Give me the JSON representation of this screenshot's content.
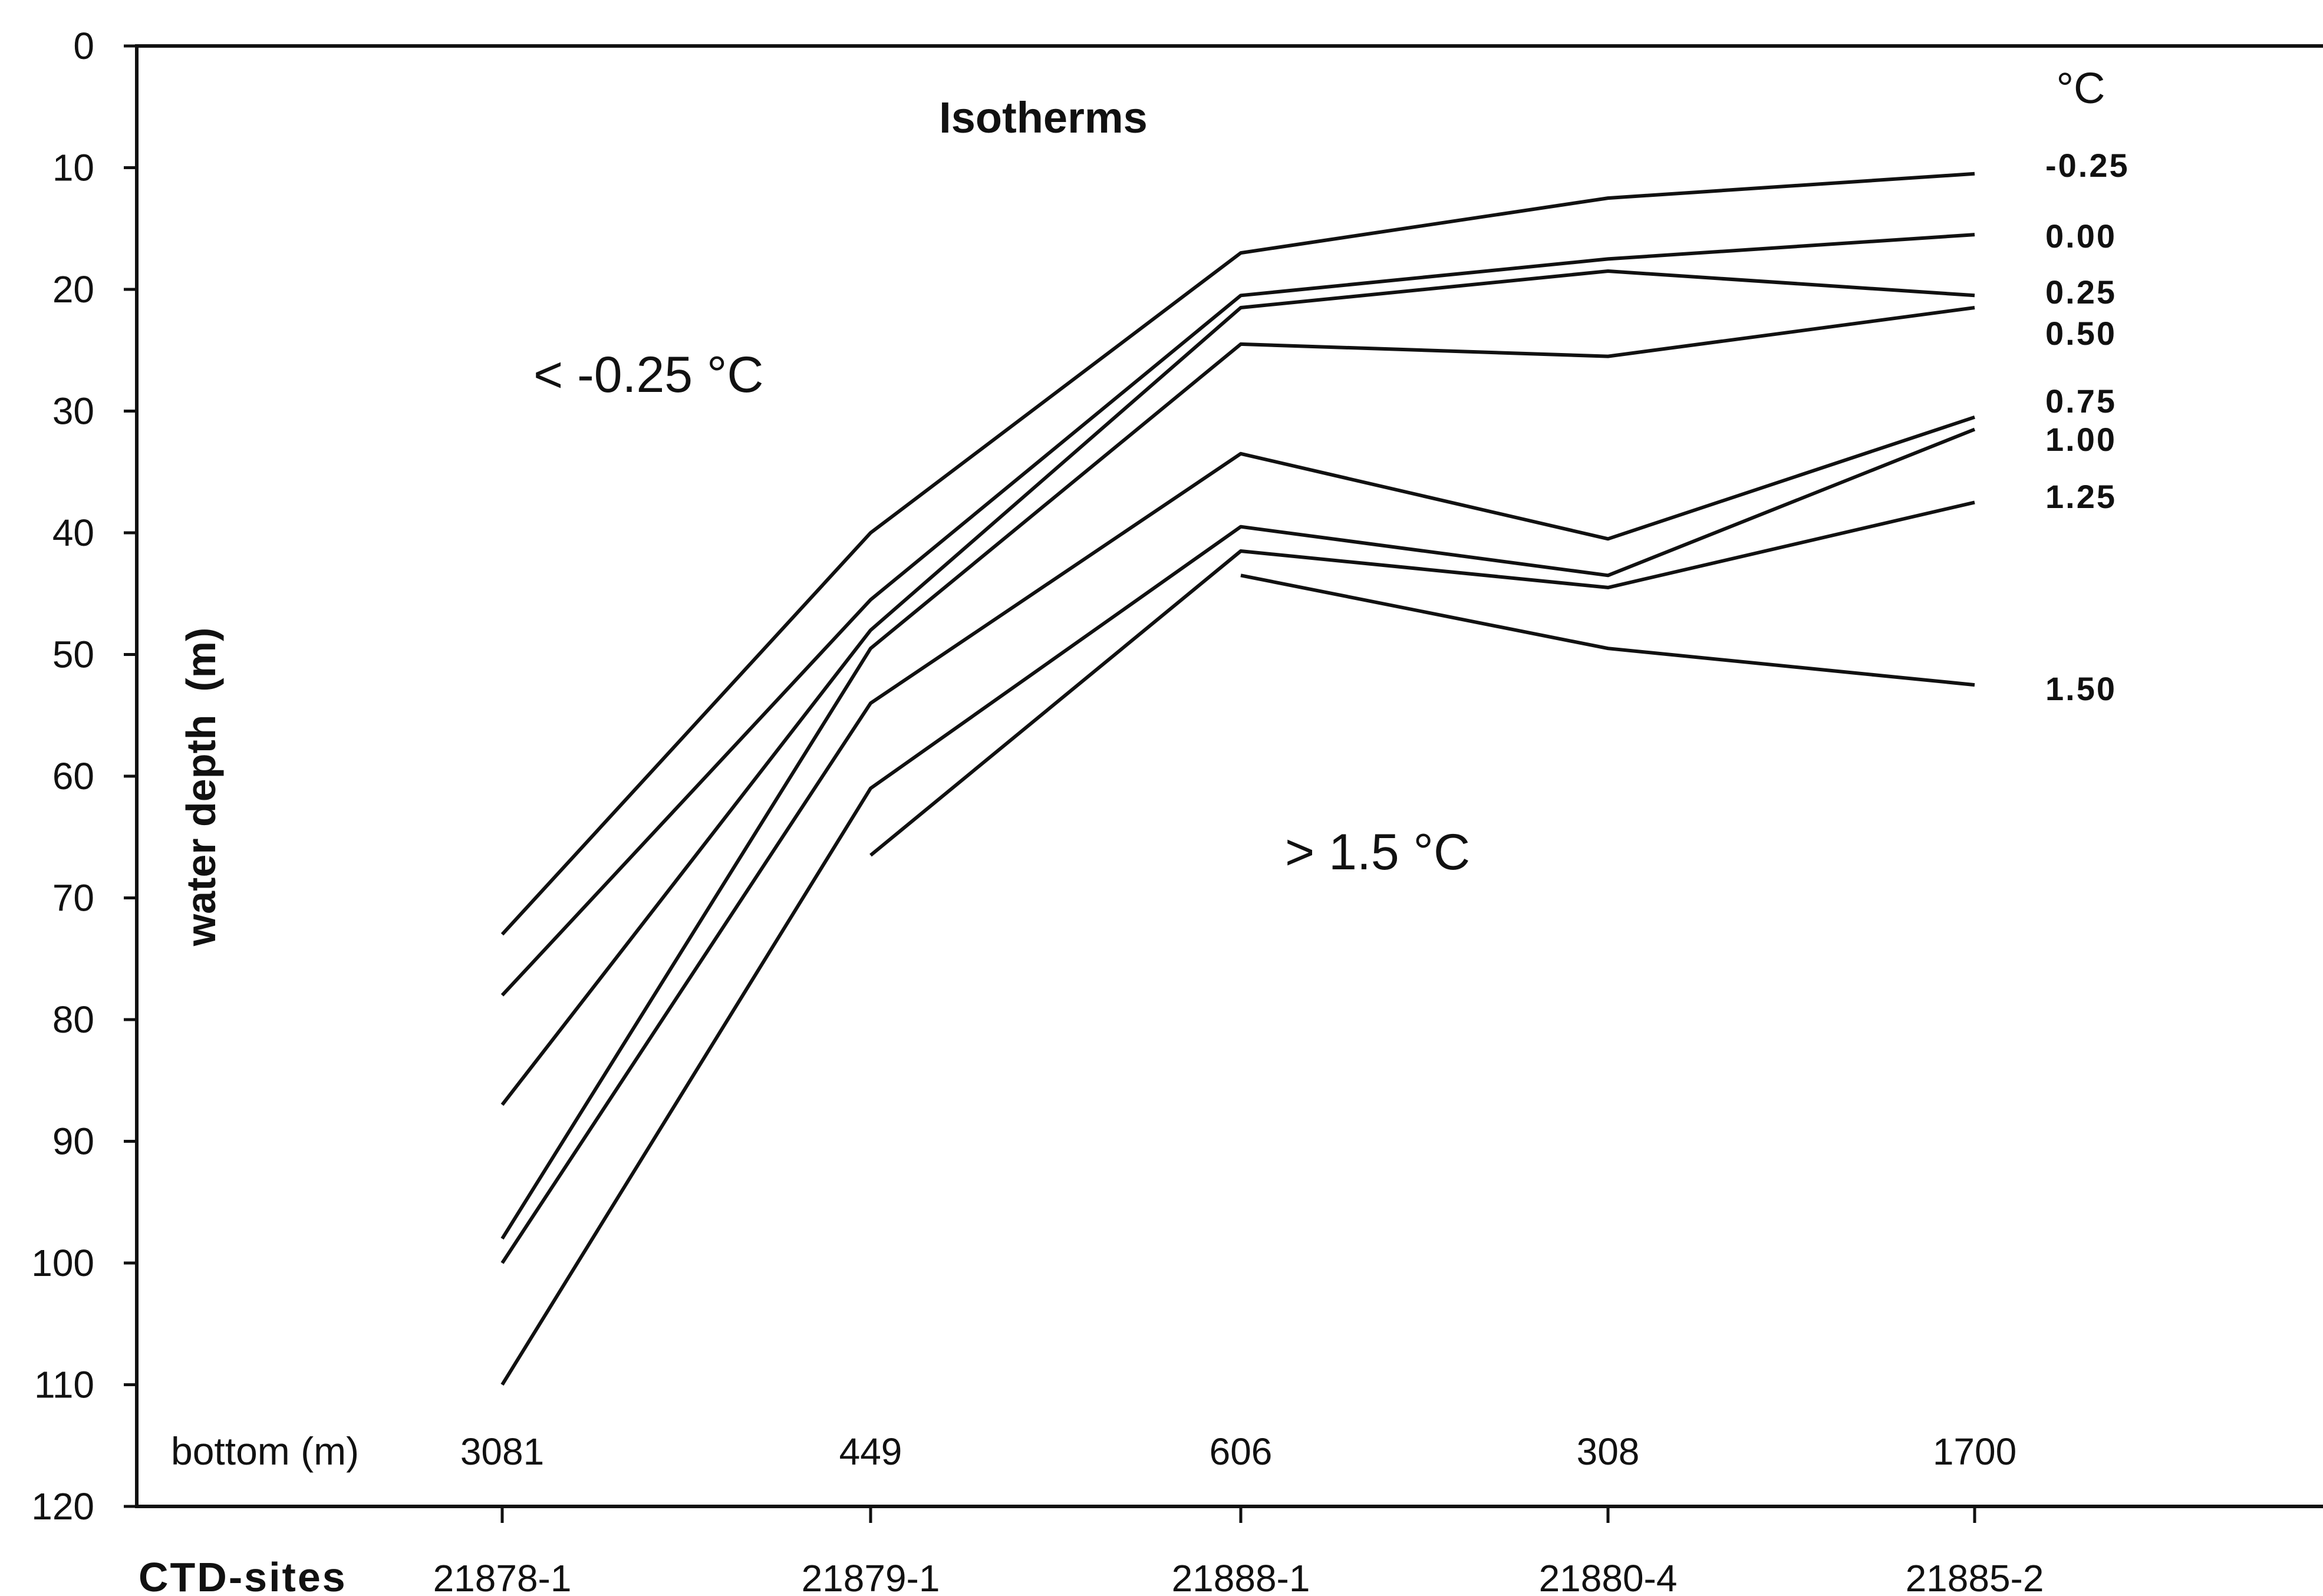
{
  "chart_data": {
    "type": "line",
    "title": "Isotherms",
    "ylabel": "water depth  (m)",
    "xlabel": "CTD-sites",
    "ylim": [
      0,
      120
    ],
    "y_inverted": true,
    "y_ticks": [
      0,
      10,
      20,
      30,
      40,
      50,
      60,
      70,
      80,
      90,
      100,
      110,
      120
    ],
    "categories": [
      "21878-1",
      "21879-1",
      "21888-1",
      "21880-4",
      "21885-2"
    ],
    "legend_title": "°C",
    "bottom_label": "bottom (m)",
    "bottom_depths": [
      "3081",
      "449",
      "606",
      "308",
      "1700"
    ],
    "annotations": {
      "cold": "< -0.25 °C",
      "warm": "> 1.5 °C"
    },
    "grid": false,
    "line_color": "#111111",
    "series": [
      {
        "name": "-0.25",
        "values": [
          73,
          40,
          17,
          12.5,
          10.5
        ]
      },
      {
        "name": "0.00",
        "values": [
          78,
          45.5,
          20.5,
          17.5,
          15.5
        ]
      },
      {
        "name": "0.25",
        "values": [
          87,
          48,
          21.5,
          18.5,
          20.5
        ]
      },
      {
        "name": "0.50",
        "values": [
          98,
          49.5,
          24.5,
          25.5,
          21.5
        ]
      },
      {
        "name": "0.75",
        "values": [
          100,
          54,
          33.5,
          40.5,
          30.5
        ]
      },
      {
        "name": "1.00",
        "values": [
          110,
          61,
          39.5,
          43.5,
          31.5
        ]
      },
      {
        "name": "1.25",
        "values": [
          null,
          66.5,
          41.5,
          44.5,
          37.5
        ]
      },
      {
        "name": "1.50",
        "values": [
          null,
          null,
          43.5,
          49.5,
          52.5
        ]
      }
    ]
  }
}
